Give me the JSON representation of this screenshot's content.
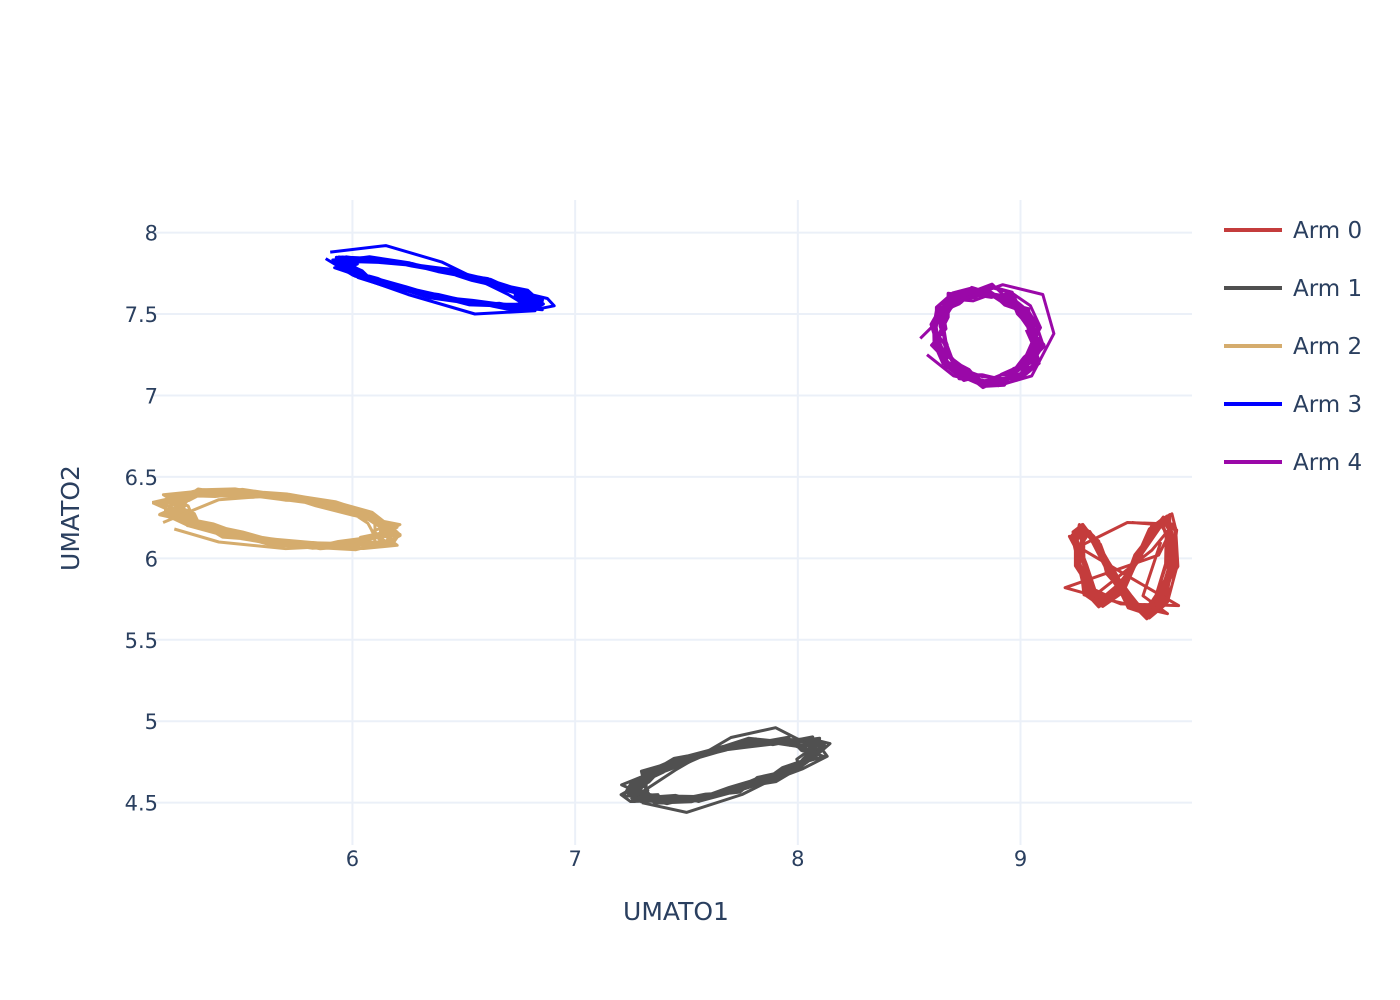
{
  "chart_data": {
    "type": "line",
    "title": "",
    "xlabel": "UMATO1",
    "ylabel": "UMATO2",
    "xlim": [
      5.1,
      9.77
    ],
    "ylim": [
      4.24,
      8.2
    ],
    "x_ticks": [
      "6",
      "7",
      "8",
      "9"
    ],
    "y_ticks": [
      "8",
      "7.5",
      "7",
      "6.5",
      "6",
      "5.5",
      "5",
      "4.5"
    ],
    "grid": true,
    "legend_position": "right",
    "series": [
      {
        "name": "Arm 0",
        "color": "#c43c3c",
        "shape": "figure-eight",
        "cx": 9.47,
        "cy": 5.96,
        "rx": 0.21,
        "ry": 0.29,
        "loops": 14,
        "x": [
          9.5,
          9.68,
          9.59,
          9.34,
          9.45,
          9.71,
          9.52,
          9.26,
          9.48,
          9.69,
          9.62,
          9.2,
          9.41,
          9.66,
          9.55,
          9.63
        ],
        "y": [
          6.22,
          6.2,
          6.05,
          5.78,
          5.72,
          5.71,
          5.86,
          6.07,
          6.22,
          6.21,
          6.02,
          5.82,
          5.74,
          5.66,
          5.77,
          6.1
        ]
      },
      {
        "name": "Arm 1",
        "color": "#505050",
        "shape": "ellipse",
        "cx": 7.67,
        "cy": 4.7,
        "rx": 0.43,
        "ry": 0.13,
        "tilt": 0.33,
        "loops": 16,
        "x": [
          7.25,
          7.45,
          7.7,
          7.9,
          8.1,
          8.0,
          7.75,
          7.5,
          7.3
        ],
        "y": [
          4.52,
          4.7,
          4.9,
          4.96,
          4.82,
          4.72,
          4.55,
          4.44,
          4.5
        ]
      },
      {
        "name": "Arm 2",
        "color": "#d5ac6d",
        "shape": "ellipse",
        "cx": 5.67,
        "cy": 6.24,
        "rx": 0.5,
        "ry": 0.14,
        "tilt": -0.18,
        "loops": 16,
        "x": [
          5.15,
          5.4,
          5.7,
          6.0,
          6.2,
          6.0,
          5.7,
          5.4,
          5.2
        ],
        "y": [
          6.22,
          6.36,
          6.39,
          6.3,
          6.19,
          6.08,
          6.06,
          6.1,
          6.18
        ]
      },
      {
        "name": "Arm 3",
        "color": "#0000ff",
        "shape": "ellipse",
        "cx": 6.39,
        "cy": 7.69,
        "rx": 0.46,
        "ry": 0.08,
        "tilt": -0.28,
        "loops": 16,
        "x": [
          5.9,
          6.15,
          6.4,
          6.7,
          6.82,
          6.55,
          6.25,
          6.0,
          5.88
        ],
        "y": [
          7.88,
          7.92,
          7.82,
          7.62,
          7.52,
          7.5,
          7.62,
          7.74,
          7.84
        ]
      },
      {
        "name": "Arm 4",
        "color": "#9a08a8",
        "shape": "ellipse",
        "cx": 8.85,
        "cy": 7.36,
        "rx": 0.22,
        "ry": 0.28,
        "tilt": 0.25,
        "loops": 14,
        "x": [
          8.55,
          8.72,
          8.92,
          9.1,
          9.15,
          9.05,
          8.9,
          8.7,
          8.58
        ],
        "y": [
          7.35,
          7.58,
          7.68,
          7.62,
          7.38,
          7.12,
          7.06,
          7.12,
          7.25
        ]
      }
    ]
  }
}
